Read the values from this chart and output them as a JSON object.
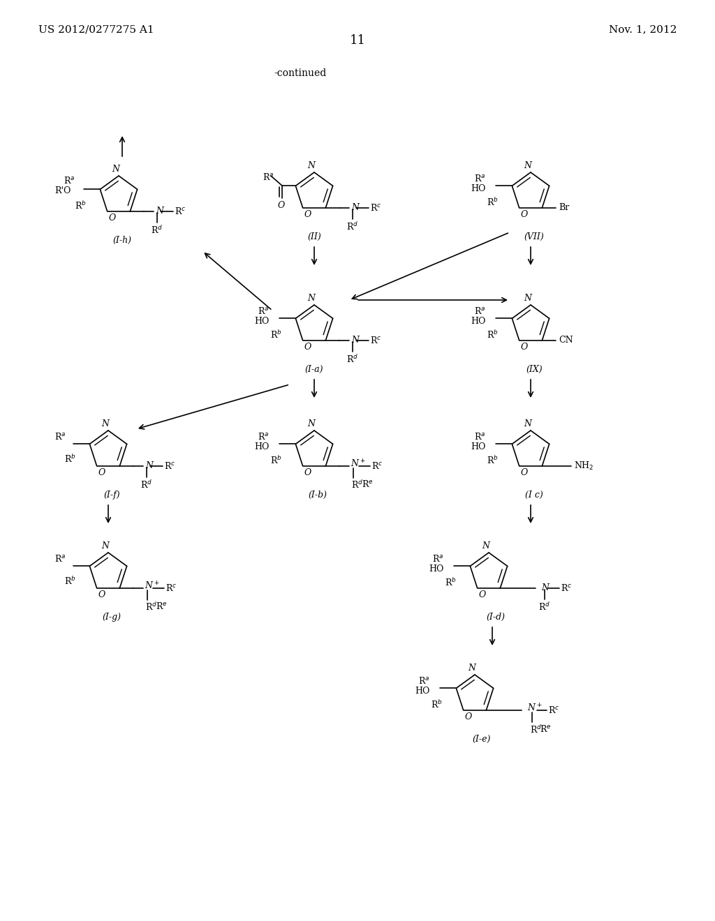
{
  "page_number": "11",
  "patent_number": "US 2012/0277275 A1",
  "patent_date": "Nov. 1, 2012",
  "continued_label": "-continued",
  "background_color": "#ffffff",
  "text_color": "#000000"
}
